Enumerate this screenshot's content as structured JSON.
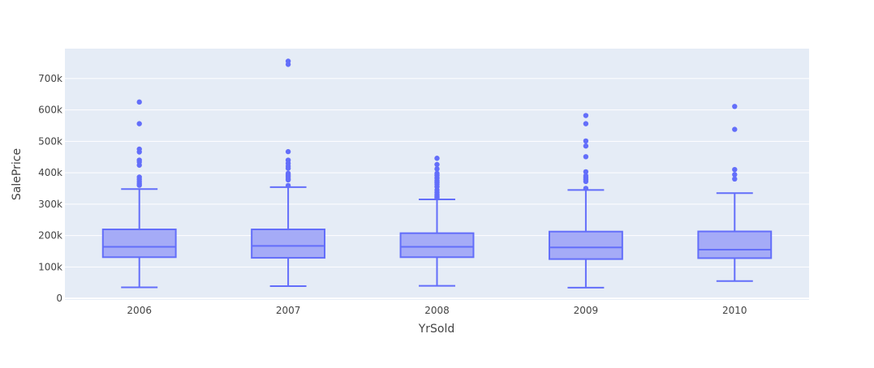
{
  "colors": {
    "plot_background": "#E5ECF6",
    "grid": "#FFFFFF",
    "box_line": "#636EFA",
    "box_fill": "#A5ABF7",
    "text": "#444444"
  },
  "chart_data": {
    "type": "box",
    "xlabel": "YrSold",
    "ylabel": "SalePrice",
    "categories": [
      "2006",
      "2007",
      "2008",
      "2009",
      "2010"
    ],
    "y_ticks": [
      0,
      100000,
      200000,
      300000,
      400000,
      500000,
      600000,
      700000
    ],
    "y_tick_labels": [
      "0",
      "100k",
      "200k",
      "300k",
      "400k",
      "500k",
      "600k",
      "700k"
    ],
    "ylim": [
      -5000,
      795000
    ],
    "grid": true,
    "boxes": [
      {
        "category": "2006",
        "lower_fence": 35000,
        "q1": 131000,
        "median": 164000,
        "q3": 219500,
        "upper_fence": 348000,
        "outliers": [
          360000,
          366000,
          372000,
          379000,
          386000,
          424000,
          434000,
          440000,
          466000,
          475000,
          556000,
          625000
        ]
      },
      {
        "category": "2007",
        "lower_fence": 39000,
        "q1": 129000,
        "median": 167000,
        "q3": 219500,
        "upper_fence": 354000,
        "outliers": [
          359000,
          377000,
          381000,
          387000,
          392000,
          398000,
          414000,
          421000,
          430000,
          440000,
          467000,
          745000,
          755000
        ]
      },
      {
        "category": "2008",
        "lower_fence": 40000,
        "q1": 131000,
        "median": 164000,
        "q3": 207500,
        "upper_fence": 315000,
        "outliers": [
          320000,
          325000,
          330000,
          337000,
          345000,
          355000,
          363000,
          369000,
          375000,
          383000,
          391000,
          398000,
          412000,
          426000,
          446000
        ]
      },
      {
        "category": "2009",
        "lower_fence": 34000,
        "q1": 125000,
        "median": 162000,
        "q3": 212500,
        "upper_fence": 345000,
        "outliers": [
          350000,
          372000,
          378000,
          384000,
          390000,
          403000,
          451000,
          485000,
          501000,
          556000,
          582000
        ]
      },
      {
        "category": "2010",
        "lower_fence": 55000,
        "q1": 128000,
        "median": 155000,
        "q3": 213000,
        "upper_fence": 335000,
        "outliers": [
          380000,
          394000,
          410000,
          538000,
          611000
        ]
      }
    ]
  }
}
